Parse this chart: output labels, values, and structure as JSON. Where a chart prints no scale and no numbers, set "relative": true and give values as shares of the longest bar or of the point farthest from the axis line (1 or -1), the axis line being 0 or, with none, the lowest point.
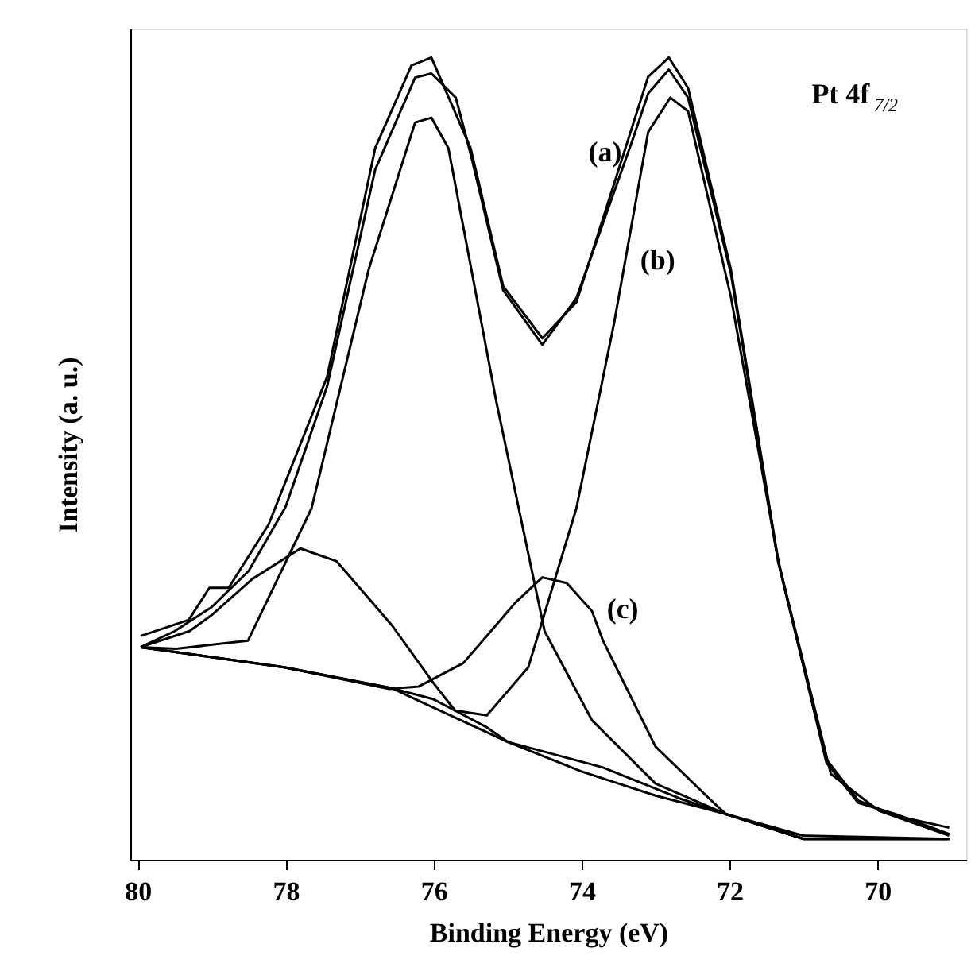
{
  "chart_data": {
    "type": "line",
    "relative": true,
    "xlabel": "Binding Energy (eV)",
    "ylabel": "Intensity (a. u.)",
    "xlim": [
      80.1,
      68.8
    ],
    "xticks": [
      80,
      78,
      76,
      74,
      72,
      70
    ],
    "grid": false,
    "marker": "none",
    "line_style": "solid",
    "series": [
      {
        "color": "#000000",
        "x": [
          79.96,
          79.31,
          79.03,
          78.77,
          78.23,
          77.44,
          76.79,
          76.3,
          76.03,
          75.5,
          75.06,
          74.53,
          74.07,
          73.1,
          72.82,
          72.56,
          71.98,
          71.34,
          70.69,
          70.26,
          69.76,
          69.03
        ],
        "values": [
          0.279,
          0.299,
          0.339,
          0.339,
          0.418,
          0.602,
          0.887,
          0.99,
          1.0,
          0.887,
          0.715,
          0.65,
          0.695,
          0.976,
          1.0,
          0.962,
          0.735,
          0.372,
          0.121,
          0.071,
          0.057,
          0.032
        ]
      },
      {
        "color": "#000000",
        "x": [
          79.96,
          79.5,
          79.0,
          78.5,
          78.0,
          77.44,
          76.79,
          76.25,
          76.03,
          75.7,
          75.5,
          75.06,
          74.53,
          74.07,
          73.3,
          73.1,
          72.82,
          72.56,
          71.98,
          71.34,
          70.69,
          70.26,
          69.76,
          69.03
        ],
        "values": [
          0.265,
          0.285,
          0.315,
          0.36,
          0.44,
          0.59,
          0.86,
          0.975,
          0.98,
          0.95,
          0.88,
          0.71,
          0.642,
          0.7,
          0.9,
          0.955,
          0.985,
          0.95,
          0.73,
          0.37,
          0.125,
          0.074,
          0.055,
          0.04
        ]
      },
      {
        "color": "#000000",
        "x": [
          79.96,
          79.48,
          78.51,
          77.65,
          76.88,
          76.25,
          76.03,
          75.8,
          75.15,
          74.5,
          73.86,
          73.0,
          72.05,
          71.0,
          69.03
        ],
        "values": [
          0.265,
          0.263,
          0.273,
          0.438,
          0.735,
          0.919,
          0.925,
          0.887,
          0.57,
          0.285,
          0.174,
          0.095,
          0.057,
          0.03,
          0.026
        ]
      },
      {
        "color": "#000000",
        "x": [
          79.96,
          78.02,
          76.57,
          76.0,
          75.71,
          75.28,
          74.72,
          74.07,
          73.56,
          73.1,
          72.8,
          72.56,
          71.98,
          71.34,
          70.63,
          69.98,
          69.03
        ],
        "values": [
          0.265,
          0.24,
          0.214,
          0.2,
          0.186,
          0.18,
          0.24,
          0.438,
          0.669,
          0.907,
          0.95,
          0.933,
          0.701,
          0.372,
          0.107,
          0.061,
          0.03
        ]
      },
      {
        "color": "#000000",
        "x": [
          79.96,
          79.3,
          79.0,
          78.45,
          77.8,
          77.31,
          76.57,
          76.0,
          75.71,
          75.28,
          75.0,
          74.0,
          73.0,
          72.05,
          71.0,
          69.03
        ],
        "values": [
          0.265,
          0.285,
          0.305,
          0.35,
          0.388,
          0.372,
          0.293,
          0.22,
          0.186,
          0.165,
          0.147,
          0.11,
          0.08,
          0.057,
          0.026,
          0.026
        ]
      },
      {
        "color": "#000000",
        "x": [
          79.96,
          78.02,
          76.6,
          76.2,
          75.6,
          75.28,
          74.9,
          74.53,
          74.2,
          73.86,
          73.71,
          73.0,
          72.26,
          72.05,
          71.0,
          69.03
        ],
        "values": [
          0.265,
          0.24,
          0.213,
          0.216,
          0.245,
          0.279,
          0.32,
          0.352,
          0.345,
          0.31,
          0.273,
          0.141,
          0.075,
          0.057,
          0.026,
          0.026
        ]
      },
      {
        "color": "#000000",
        "x": [
          79.96,
          78.02,
          76.57,
          75.0,
          73.71,
          72.63,
          72.05,
          71.0,
          69.03
        ],
        "values": [
          0.265,
          0.24,
          0.214,
          0.147,
          0.115,
          0.075,
          0.057,
          0.026,
          0.026
        ]
      }
    ],
    "annotations": [
      "(a)",
      "(b)",
      "(c)",
      "Pt 4f$_{7/2}$"
    ]
  }
}
